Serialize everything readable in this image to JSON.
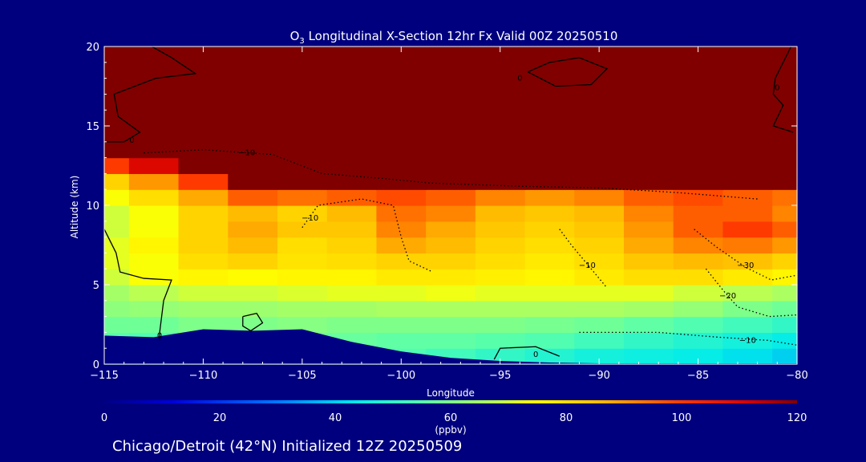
{
  "figure": {
    "title_prefix": "O",
    "title_sub": "3",
    "title_rest": " Longitudinal X-Section 12hr  Fx Valid 00Z 20250510",
    "footer": "Chicago/Detroit (42°N) Initialized 12Z 20250509",
    "colorbar_unit": "(ppbv)",
    "background_color": "#00007f"
  },
  "chart_data": {
    "type": "heatmap",
    "title": "O3 Longitudinal X-Section 12hr  Fx Valid 00Z 20250510",
    "xlabel": "Longitude",
    "ylabel": "Altitude (km)",
    "xlim": [
      -115,
      -80
    ],
    "ylim": [
      0,
      20
    ],
    "x_ticks": [
      -115,
      -110,
      -105,
      -100,
      -95,
      -90,
      -85,
      -80
    ],
    "x_tick_labels": [
      "−115",
      "−110",
      "−105",
      "−100",
      "−95",
      "−90",
      "−85",
      "−80"
    ],
    "y_ticks": [
      0,
      5,
      10,
      15,
      20
    ],
    "y_tick_labels": [
      "0",
      "5",
      "10",
      "15",
      "20"
    ],
    "colorbar": {
      "label": "(ppbv)",
      "range": [
        0,
        120
      ],
      "ticks": [
        0,
        20,
        40,
        60,
        80,
        100,
        120
      ],
      "tick_labels": [
        "0",
        "20",
        "40",
        "60",
        "80",
        "100",
        "120"
      ],
      "colormap": "rainbow (dark blue → cyan → green → yellow → red → dark red)"
    },
    "longitudes": [
      -115,
      -112.5,
      -110,
      -107.5,
      -105,
      -102.5,
      -100,
      -97.5,
      -95,
      -92.5,
      -90,
      -87.5,
      -85,
      -82.5,
      -80
    ],
    "altitudes": [
      0.5,
      1.5,
      2.5,
      3.5,
      4.5,
      5.5,
      6.5,
      7.5,
      8.5,
      9.5,
      10.5,
      11.5,
      12.5,
      13.5,
      14.5,
      15.5,
      16.5,
      17.5,
      18.5,
      19.5
    ],
    "terrain_height_km": [
      1.8,
      1.7,
      2.2,
      2.1,
      2.2,
      1.4,
      0.8,
      0.4,
      0.2,
      0.1,
      0.05,
      0.05,
      0.05,
      0.05,
      0.05
    ],
    "ozone_ppbv": [
      [
        50,
        50,
        55,
        54,
        55,
        55,
        54,
        52,
        50,
        48,
        46,
        45,
        44,
        42,
        40
      ],
      [
        55,
        54,
        58,
        57,
        58,
        57,
        56,
        56,
        55,
        54,
        52,
        50,
        48,
        46,
        44
      ],
      [
        58,
        58,
        60,
        60,
        61,
        60,
        60,
        60,
        60,
        59,
        58,
        56,
        54,
        52,
        50
      ],
      [
        62,
        63,
        64,
        64,
        65,
        65,
        66,
        66,
        66,
        66,
        66,
        65,
        63,
        60,
        58
      ],
      [
        65,
        68,
        70,
        70,
        71,
        72,
        72,
        73,
        72,
        72,
        72,
        72,
        70,
        68,
        66
      ],
      [
        70,
        74,
        76,
        75,
        76,
        76,
        78,
        78,
        77,
        76,
        78,
        80,
        80,
        78,
        76
      ],
      [
        72,
        74,
        80,
        82,
        79,
        80,
        82,
        82,
        80,
        78,
        80,
        84,
        86,
        85,
        82
      ],
      [
        72,
        76,
        82,
        86,
        80,
        82,
        88,
        86,
        82,
        80,
        82,
        88,
        92,
        93,
        90
      ],
      [
        70,
        74,
        82,
        88,
        84,
        84,
        92,
        88,
        84,
        82,
        84,
        90,
        96,
        100,
        96
      ],
      [
        70,
        74,
        82,
        86,
        82,
        86,
        94,
        92,
        86,
        84,
        86,
        92,
        96,
        96,
        92
      ],
      [
        74,
        80,
        88,
        96,
        94,
        96,
        98,
        96,
        92,
        90,
        92,
        96,
        98,
        96,
        94
      ],
      [
        82,
        90,
        100,
        120,
        120,
        120,
        120,
        120,
        120,
        120,
        120,
        120,
        120,
        120,
        120
      ],
      [
        100,
        110,
        120,
        120,
        120,
        120,
        120,
        120,
        120,
        120,
        120,
        120,
        120,
        120,
        120
      ],
      [
        120,
        120,
        120,
        120,
        120,
        120,
        120,
        120,
        120,
        120,
        120,
        120,
        120,
        120,
        120
      ],
      [
        120,
        120,
        120,
        120,
        120,
        120,
        120,
        120,
        120,
        120,
        120,
        120,
        120,
        120,
        120
      ],
      [
        120,
        120,
        120,
        120,
        120,
        120,
        120,
        120,
        120,
        120,
        120,
        120,
        120,
        120,
        120
      ],
      [
        120,
        120,
        120,
        120,
        120,
        120,
        120,
        120,
        120,
        120,
        120,
        120,
        120,
        120,
        120
      ],
      [
        120,
        120,
        120,
        120,
        120,
        120,
        120,
        120,
        120,
        120,
        120,
        120,
        120,
        120,
        120
      ],
      [
        120,
        120,
        120,
        120,
        120,
        120,
        120,
        120,
        120,
        120,
        120,
        120,
        120,
        120,
        120
      ],
      [
        120,
        120,
        120,
        120,
        120,
        120,
        120,
        120,
        120,
        120,
        120,
        120,
        120,
        120,
        120
      ]
    ],
    "contours": [
      {
        "label": "0",
        "style": "solid",
        "lon": -113.6,
        "alt": 14.1,
        "points": [
          [
            -115,
            14.0
          ],
          [
            -114.0,
            14.0
          ],
          [
            -113.2,
            14.6
          ],
          [
            -114.3,
            15.6
          ],
          [
            -114.5,
            17.0
          ],
          [
            -112.4,
            18.0
          ],
          [
            -110.4,
            18.3
          ],
          [
            -111.6,
            19.3
          ],
          [
            -112.6,
            20.0
          ]
        ]
      },
      {
        "label": "0",
        "style": "solid",
        "lon": -94.0,
        "alt": 18.0,
        "points": [
          [
            -93.6,
            18.4
          ],
          [
            -92.5,
            19.0
          ],
          [
            -91.0,
            19.3
          ],
          [
            -89.6,
            18.6
          ],
          [
            -90.4,
            17.6
          ],
          [
            -92.2,
            17.5
          ],
          [
            -93.6,
            18.4
          ]
        ]
      },
      {
        "label": "0",
        "style": "solid",
        "lon": -81.0,
        "alt": 17.4,
        "points": [
          [
            -80.3,
            20.0
          ],
          [
            -81.1,
            18.0
          ],
          [
            -81.2,
            17.0
          ],
          [
            -80.7,
            16.3
          ],
          [
            -81.2,
            15.0
          ],
          [
            -80.2,
            14.6
          ]
        ]
      },
      {
        "label": "",
        "style": "solid",
        "lon": null,
        "alt": null,
        "points": [
          [
            -115,
            8.5
          ],
          [
            -114.4,
            7.0
          ],
          [
            -114.2,
            5.8
          ],
          [
            -113.0,
            5.4
          ],
          [
            -111.6,
            5.3
          ],
          [
            -112.0,
            4.0
          ],
          [
            -112.2,
            2.0
          ]
        ]
      },
      {
        "label": "0",
        "style": "solid",
        "lon": -112.2,
        "alt": 1.8,
        "points": [
          [
            -112.2,
            1.5
          ],
          [
            -112.2,
            2.0
          ]
        ]
      },
      {
        "label": "0",
        "style": "solid",
        "lon": -93.2,
        "alt": 0.6,
        "points": [
          [
            -95.3,
            0.3
          ],
          [
            -95.0,
            1.0
          ],
          [
            -93.2,
            1.1
          ],
          [
            -92.0,
            0.5
          ]
        ]
      },
      {
        "label": "",
        "style": "solid",
        "lon": null,
        "alt": null,
        "points": [
          [
            -108.0,
            3.0
          ],
          [
            -107.3,
            3.2
          ],
          [
            -107.0,
            2.6
          ],
          [
            -107.6,
            2.1
          ],
          [
            -108.0,
            2.4
          ],
          [
            -108.0,
            3.0
          ]
        ]
      },
      {
        "label": "−10",
        "style": "dotted",
        "lon": -107.8,
        "alt": 13.3,
        "points": [
          [
            -113.0,
            13.3
          ],
          [
            -110.0,
            13.5
          ],
          [
            -106.5,
            13.2
          ],
          [
            -104.0,
            12.0
          ],
          [
            -101.0,
            11.7
          ],
          [
            -98.5,
            11.4
          ],
          [
            -94.0,
            11.2
          ],
          [
            -90.0,
            11.1
          ],
          [
            -86.0,
            10.8
          ],
          [
            -82.0,
            10.4
          ]
        ]
      },
      {
        "label": "−10",
        "style": "dotted",
        "lon": -104.6,
        "alt": 9.2,
        "points": [
          [
            -105.0,
            8.6
          ],
          [
            -104.2,
            10.0
          ],
          [
            -102.0,
            10.4
          ],
          [
            -100.4,
            10.0
          ],
          [
            -100.0,
            8.0
          ],
          [
            -99.6,
            6.5
          ],
          [
            -98.4,
            5.8
          ]
        ]
      },
      {
        "label": "−10",
        "style": "dotted",
        "lon": -90.6,
        "alt": 6.2,
        "points": [
          [
            -92.0,
            8.5
          ],
          [
            -91.4,
            7.5
          ],
          [
            -90.4,
            6.0
          ],
          [
            -89.6,
            4.8
          ]
        ]
      },
      {
        "label": "−10",
        "style": "dotted",
        "lon": -82.5,
        "alt": 1.5,
        "points": [
          [
            -91.0,
            2.0
          ],
          [
            -87.0,
            2.0
          ],
          [
            -84.0,
            1.7
          ],
          [
            -81.5,
            1.5
          ],
          [
            -80.0,
            1.2
          ]
        ]
      },
      {
        "label": "−20",
        "style": "dotted",
        "lon": -83.5,
        "alt": 4.3,
        "points": [
          [
            -84.6,
            6.0
          ],
          [
            -83.7,
            4.6
          ],
          [
            -83.0,
            3.6
          ],
          [
            -81.4,
            3.0
          ],
          [
            -80.0,
            3.1
          ]
        ]
      },
      {
        "label": "−30",
        "style": "dotted",
        "lon": -82.6,
        "alt": 6.2,
        "points": [
          [
            -85.2,
            8.5
          ],
          [
            -84.1,
            7.4
          ],
          [
            -82.6,
            6.1
          ],
          [
            -81.3,
            5.3
          ],
          [
            -80.0,
            5.6
          ]
        ]
      }
    ]
  }
}
